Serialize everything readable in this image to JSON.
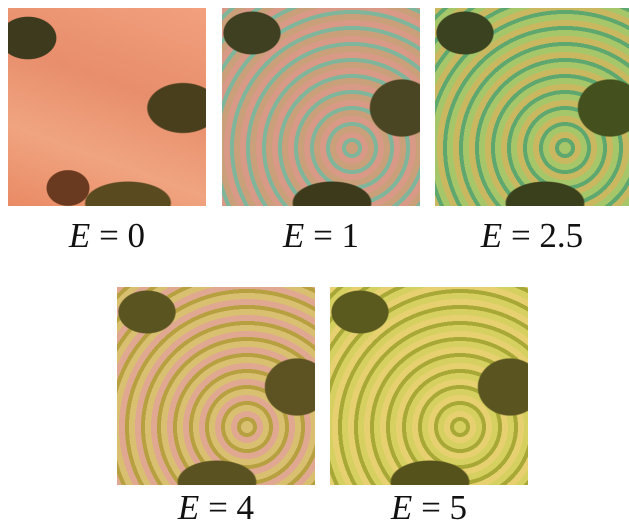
{
  "panels": [
    {
      "label": "E = 0"
    },
    {
      "label": "E = 1"
    },
    {
      "label": "E = 2.5"
    },
    {
      "label": "E = 4"
    },
    {
      "label": "E = 5"
    }
  ]
}
